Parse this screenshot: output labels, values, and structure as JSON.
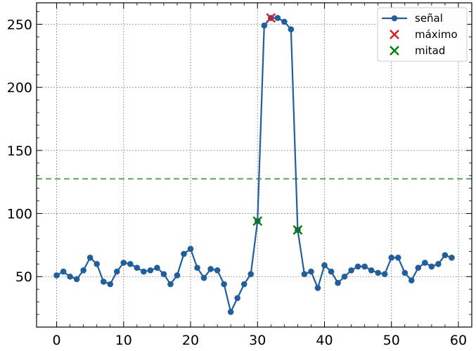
{
  "chart_data": {
    "type": "line",
    "title": "",
    "xlabel": "",
    "ylabel": "",
    "xlim": [
      -3,
      62
    ],
    "ylim": [
      10,
      267
    ],
    "xticks": [
      0,
      10,
      20,
      30,
      40,
      50,
      60
    ],
    "yticks": [
      50,
      100,
      150,
      200,
      250
    ],
    "grid": true,
    "legend_position": "top-right",
    "series": [
      {
        "name": "señal",
        "color": "#1f5fa0",
        "x": [
          0,
          1,
          2,
          3,
          4,
          5,
          6,
          7,
          8,
          9,
          10,
          11,
          12,
          13,
          14,
          15,
          16,
          17,
          18,
          19,
          20,
          21,
          22,
          23,
          24,
          25,
          26,
          27,
          28,
          29,
          30,
          31,
          32,
          33,
          34,
          35,
          36,
          37,
          38,
          39,
          40,
          41,
          42,
          43,
          44,
          45,
          46,
          47,
          48,
          49,
          50,
          51,
          52,
          53,
          54,
          55,
          56,
          57,
          58,
          59
        ],
        "values": [
          51,
          54,
          50,
          48,
          55,
          65,
          60,
          46,
          44,
          54,
          61,
          60,
          57,
          54,
          55,
          57,
          52,
          44,
          51,
          68,
          72,
          57,
          49,
          56,
          55,
          44,
          22,
          33,
          44,
          52,
          94,
          249,
          255,
          255,
          252,
          246,
          87,
          52,
          54,
          41,
          59,
          54,
          45,
          50,
          55,
          58,
          58,
          55,
          53,
          52,
          65,
          65,
          53,
          47,
          57,
          61,
          58,
          60,
          67,
          65
        ]
      }
    ],
    "markers": [
      {
        "name": "máximo",
        "color": "#e31a1c",
        "points": [
          {
            "x": 32,
            "y": 255
          }
        ]
      },
      {
        "name": "mitad",
        "color": "#008000",
        "points": [
          {
            "x": 30,
            "y": 94
          },
          {
            "x": 36,
            "y": 87
          }
        ]
      }
    ],
    "hline": {
      "y": 127.5,
      "color": "#5aaa5a",
      "style": "dashed"
    },
    "legend": [
      "señal",
      "máximo",
      "mitad"
    ]
  }
}
